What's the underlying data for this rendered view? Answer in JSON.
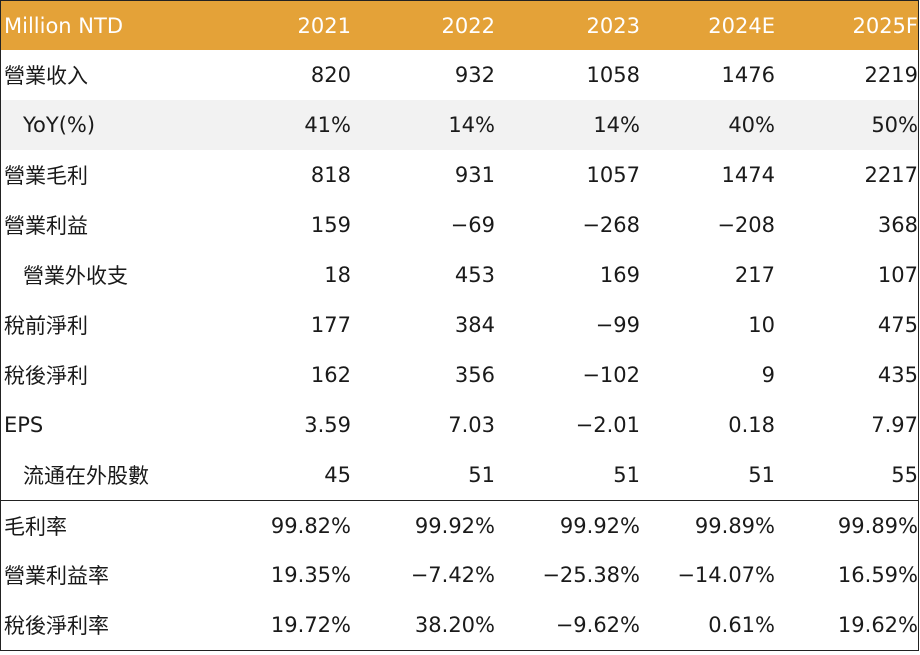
{
  "header": {
    "label": "Million NTD",
    "years": [
      "2021",
      "2022",
      "2023",
      "2024E",
      "2025F"
    ]
  },
  "rows": [
    {
      "label": "營業收入",
      "values": [
        "820",
        "932",
        "1058",
        "1476",
        "2219"
      ]
    },
    {
      "label": "YoY(%)",
      "values": [
        "41%",
        "14%",
        "14%",
        "40%",
        "50%"
      ]
    },
    {
      "label": "營業毛利",
      "values": [
        "818",
        "931",
        "1057",
        "1474",
        "2217"
      ]
    },
    {
      "label": "營業利益",
      "values": [
        "159",
        "−69",
        "−268",
        "−208",
        "368"
      ]
    },
    {
      "label": "營業外收支",
      "values": [
        "18",
        "453",
        "169",
        "217",
        "107"
      ]
    },
    {
      "label": "稅前淨利",
      "values": [
        "177",
        "384",
        "−99",
        "10",
        "475"
      ]
    },
    {
      "label": "稅後淨利",
      "values": [
        "162",
        "356",
        "−102",
        "9",
        "435"
      ]
    },
    {
      "label": "EPS",
      "values": [
        "3.59",
        "7.03",
        "−2.01",
        "0.18",
        "7.97"
      ]
    },
    {
      "label": "流通在外股數",
      "values": [
        "45",
        "51",
        "51",
        "51",
        "55"
      ]
    },
    {
      "label": "毛利率",
      "values": [
        "99.82%",
        "99.92%",
        "99.92%",
        "99.89%",
        "99.89%"
      ]
    },
    {
      "label": "營業利益率",
      "values": [
        "19.35%",
        "−7.42%",
        "−25.38%",
        "−14.07%",
        "16.59%"
      ]
    },
    {
      "label": "稅後淨利率",
      "values": [
        "19.72%",
        "38.20%",
        "−9.62%",
        "0.61%",
        "19.62%"
      ]
    }
  ],
  "colors": {
    "header_bg": "#e4a238",
    "header_text": "#ffffff",
    "shaded_row": "#f2f2f2"
  }
}
